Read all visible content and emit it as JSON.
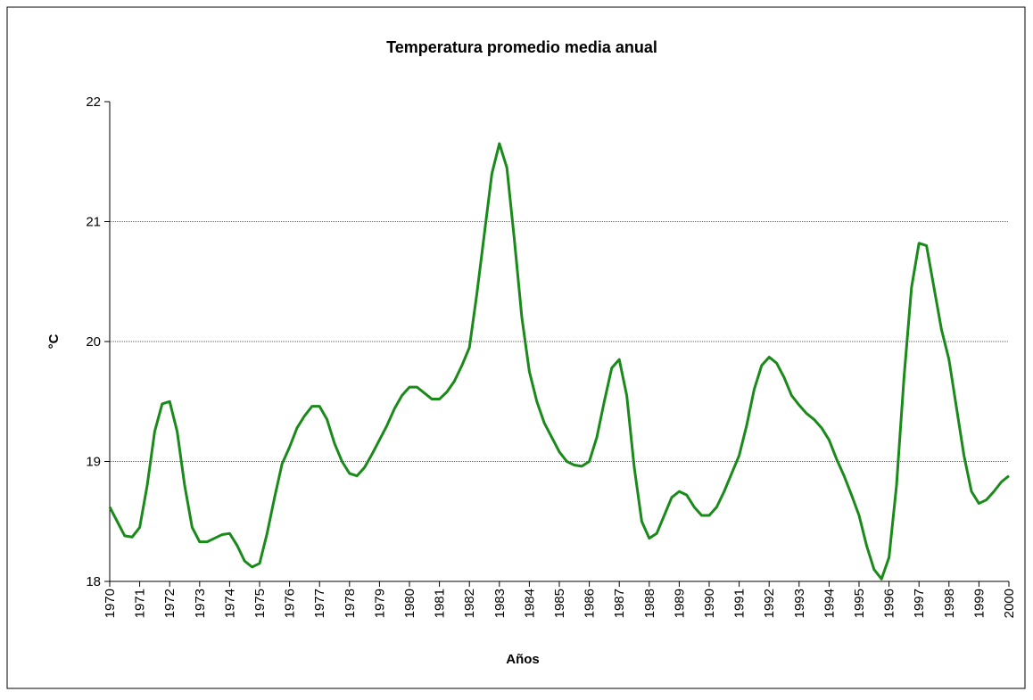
{
  "chart_data": {
    "type": "line",
    "title": "Temperatura promedio media anual",
    "xlabel": "Años",
    "ylabel": "°C",
    "x": [
      1970,
      1970.25,
      1970.5,
      1970.75,
      1971,
      1971.25,
      1971.5,
      1971.75,
      1972,
      1972.25,
      1972.5,
      1972.75,
      1973,
      1973.25,
      1973.5,
      1973.75,
      1974,
      1974.25,
      1974.5,
      1974.75,
      1975,
      1975.25,
      1975.5,
      1975.75,
      1976,
      1976.25,
      1976.5,
      1976.75,
      1977,
      1977.25,
      1977.5,
      1977.75,
      1978,
      1978.25,
      1978.5,
      1978.75,
      1979,
      1979.25,
      1979.5,
      1979.75,
      1980,
      1980.25,
      1980.5,
      1980.75,
      1981,
      1981.25,
      1981.5,
      1981.75,
      1982,
      1982.25,
      1982.5,
      1982.75,
      1983,
      1983.25,
      1983.5,
      1983.75,
      1984,
      1984.25,
      1984.5,
      1984.75,
      1985,
      1985.25,
      1985.5,
      1985.75,
      1986,
      1986.25,
      1986.5,
      1986.75,
      1987,
      1987.25,
      1987.5,
      1987.75,
      1988,
      1988.25,
      1988.5,
      1988.75,
      1989,
      1989.25,
      1989.5,
      1989.75,
      1990,
      1990.25,
      1990.5,
      1990.75,
      1991,
      1991.25,
      1991.5,
      1991.75,
      1992,
      1992.25,
      1992.5,
      1992.75,
      1993,
      1993.25,
      1993.5,
      1993.75,
      1994,
      1994.25,
      1994.5,
      1994.75,
      1995,
      1995.25,
      1995.5,
      1995.75,
      1996,
      1996.25,
      1996.5,
      1996.75,
      1997,
      1997.25,
      1997.5,
      1997.75,
      1998,
      1998.25,
      1998.5,
      1998.75,
      1999,
      1999.25,
      1999.5,
      1999.75,
      2000
    ],
    "series": [
      {
        "color": "#1a8a1a",
        "values": [
          18.62,
          18.5,
          18.38,
          18.37,
          18.45,
          18.8,
          19.25,
          19.48,
          19.5,
          19.25,
          18.8,
          18.45,
          18.33,
          18.33,
          18.36,
          18.39,
          18.4,
          18.3,
          18.17,
          18.12,
          18.15,
          18.4,
          18.7,
          18.98,
          19.12,
          19.28,
          19.38,
          19.46,
          19.46,
          19.35,
          19.15,
          19.0,
          18.9,
          18.88,
          18.95,
          19.06,
          19.18,
          19.3,
          19.44,
          19.55,
          19.62,
          19.62,
          19.57,
          19.52,
          19.52,
          19.58,
          19.67,
          19.8,
          19.95,
          20.4,
          20.9,
          21.4,
          21.65,
          21.45,
          20.85,
          20.2,
          19.75,
          19.5,
          19.32,
          19.2,
          19.08,
          19.0,
          18.97,
          18.96,
          19.0,
          19.2,
          19.5,
          19.78,
          19.85,
          19.55,
          18.95,
          18.5,
          18.36,
          18.4,
          18.55,
          18.7,
          18.75,
          18.72,
          18.62,
          18.55,
          18.55,
          18.62,
          18.75,
          18.9,
          19.05,
          19.3,
          19.6,
          19.8,
          19.87,
          19.82,
          19.7,
          19.55,
          19.47,
          19.4,
          19.35,
          19.28,
          19.18,
          19.02,
          18.88,
          18.72,
          18.55,
          18.3,
          18.1,
          18.02,
          18.2,
          18.8,
          19.7,
          20.45,
          20.82,
          20.8,
          20.45,
          20.1,
          19.85,
          19.45,
          19.05,
          18.75,
          18.65,
          18.68,
          18.75,
          18.83,
          18.88
        ]
      }
    ],
    "xlim": [
      1970,
      2000
    ],
    "xticks": [
      1970,
      1971,
      1972,
      1973,
      1974,
      1975,
      1976,
      1977,
      1978,
      1979,
      1980,
      1981,
      1982,
      1983,
      1984,
      1985,
      1986,
      1987,
      1988,
      1989,
      1990,
      1991,
      1992,
      1993,
      1994,
      1995,
      1996,
      1997,
      1998,
      1999,
      2000
    ],
    "ylim": [
      18,
      22
    ],
    "yticks": [
      18,
      19,
      20,
      21,
      22
    ],
    "grid": true
  }
}
